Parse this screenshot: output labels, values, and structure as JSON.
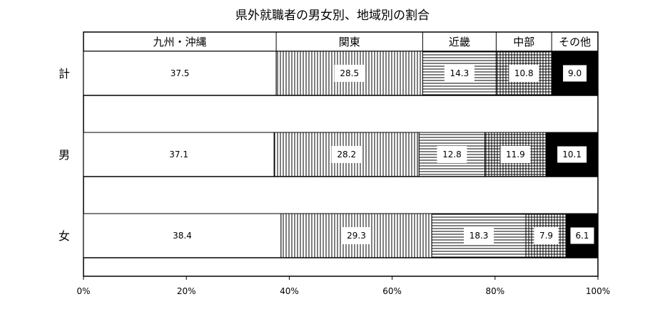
{
  "chart_data": {
    "type": "bar",
    "orientation": "horizontal",
    "stacked": true,
    "percent": true,
    "title": "県外就職者の男女別、地域別の割合",
    "categories": [
      "計",
      "男",
      "女"
    ],
    "series": [
      {
        "name": "九州・沖縄",
        "values": [
          37.5,
          37.1,
          38.4
        ],
        "pattern": "white"
      },
      {
        "name": "関東",
        "values": [
          28.5,
          28.2,
          29.3
        ],
        "pattern": "vertical-lines"
      },
      {
        "name": "近畿",
        "values": [
          14.3,
          12.8,
          18.3
        ],
        "pattern": "horizontal-lines"
      },
      {
        "name": "中部",
        "values": [
          10.8,
          11.9,
          7.9
        ],
        "pattern": "grid"
      },
      {
        "name": "その他",
        "values": [
          9.0,
          10.1,
          6.1
        ],
        "pattern": "black"
      }
    ],
    "value_labels": [
      [
        "37.5",
        "28.5",
        "14.3",
        "10.8",
        "9.0"
      ],
      [
        "37.1",
        "28.2",
        "12.8",
        "11.9",
        "10.1"
      ],
      [
        "38.4",
        "29.3",
        "18.3",
        "7.9",
        "6.1"
      ]
    ],
    "xlim": [
      0,
      100
    ],
    "x_ticks": [
      0,
      20,
      40,
      60,
      80,
      100
    ],
    "x_tick_labels": [
      "0%",
      "20%",
      "40%",
      "60%",
      "80%",
      "100%"
    ],
    "grid": false,
    "legend": "top"
  }
}
